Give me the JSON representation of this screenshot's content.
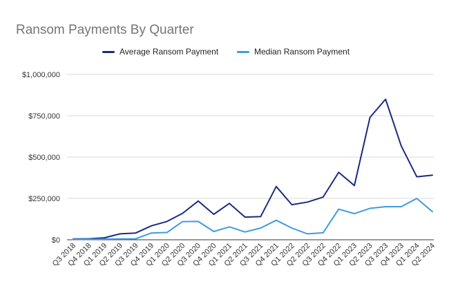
{
  "chart_data": {
    "type": "line",
    "title": "Ransom Payments By Quarter",
    "xlabel": "",
    "ylabel": "",
    "ylim": [
      0,
      1000000
    ],
    "yticks": [
      0,
      250000,
      500000,
      750000,
      1000000
    ],
    "ytick_labels": [
      "$0",
      "$250,000",
      "$500,000",
      "$750,000",
      "$1,000,000"
    ],
    "grid": true,
    "legend_position": "top",
    "categories": [
      "Q3 2018",
      "Q4 2018",
      "Q1 2019",
      "Q2 2019",
      "Q3 2019",
      "Q4 2019",
      "Q1 2020",
      "Q2 2020",
      "Q3 2020",
      "Q4 2020",
      "Q1 2021",
      "Q2 2021",
      "Q3 2021",
      "Q4 2021",
      "Q1 2022",
      "Q2 2022",
      "Q3 2022",
      "Q4 2022",
      "Q1 2023",
      "Q2 2023",
      "Q3 2023",
      "Q4 2023",
      "Q1 2024",
      "Q2 2024"
    ],
    "series": [
      {
        "name": "Average Ransom Payment",
        "color": "#1a2a80",
        "values": [
          5000,
          6000,
          12000,
          36000,
          41000,
          84000,
          111000,
          160000,
          234000,
          154000,
          220000,
          137000,
          140000,
          322000,
          212000,
          228000,
          258000,
          408000,
          328000,
          740000,
          850000,
          568000,
          381000,
          391000
        ]
      },
      {
        "name": "Median Ransom Payment",
        "color": "#3c9be0",
        "values": [
          3000,
          3000,
          4000,
          5000,
          6000,
          41000,
          44000,
          110000,
          111000,
          50000,
          78000,
          47000,
          71000,
          118000,
          71000,
          36000,
          42000,
          185000,
          158000,
          190000,
          200000,
          200000,
          250000,
          170000
        ]
      }
    ]
  }
}
